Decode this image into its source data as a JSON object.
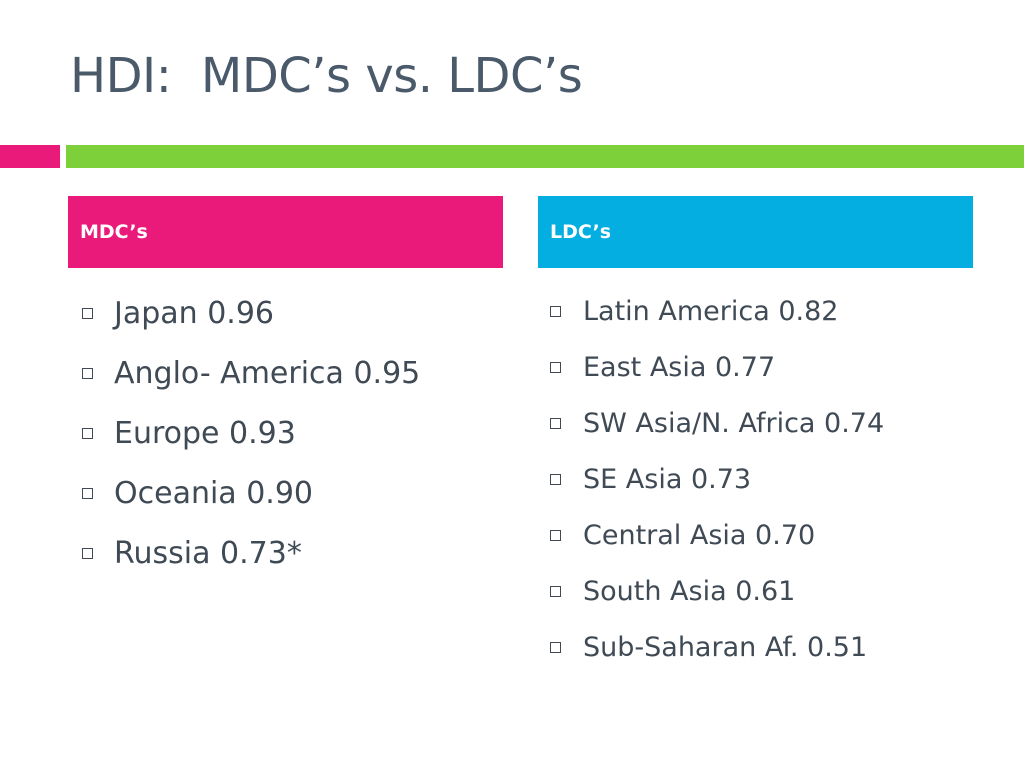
{
  "slide": {
    "title": "HDI:  MDC’s vs. LDC’s"
  },
  "colors": {
    "title": "#4a5a6a",
    "accent_pink": "#ea1a7a",
    "accent_green": "#7ed03a",
    "mdc_header": "#ea1a7a",
    "ldc_header": "#05aee0",
    "body_text": "#3f4a55"
  },
  "columns": {
    "mdc": {
      "header": "MDC’s",
      "items": [
        "Japan 0.96",
        "Anglo- America 0.95",
        "Europe 0.93",
        "Oceania 0.90",
        "Russia 0.73*"
      ]
    },
    "ldc": {
      "header": "LDC’s",
      "items": [
        "Latin America 0.82",
        "East Asia 0.77",
        "SW Asia/N. Africa 0.74",
        "SE Asia 0.73",
        "Central Asia 0.70",
        "South Asia 0.61",
        "Sub-Saharan Af. 0.51"
      ]
    }
  },
  "icons": {
    "bullet": "square-bullet-icon"
  }
}
